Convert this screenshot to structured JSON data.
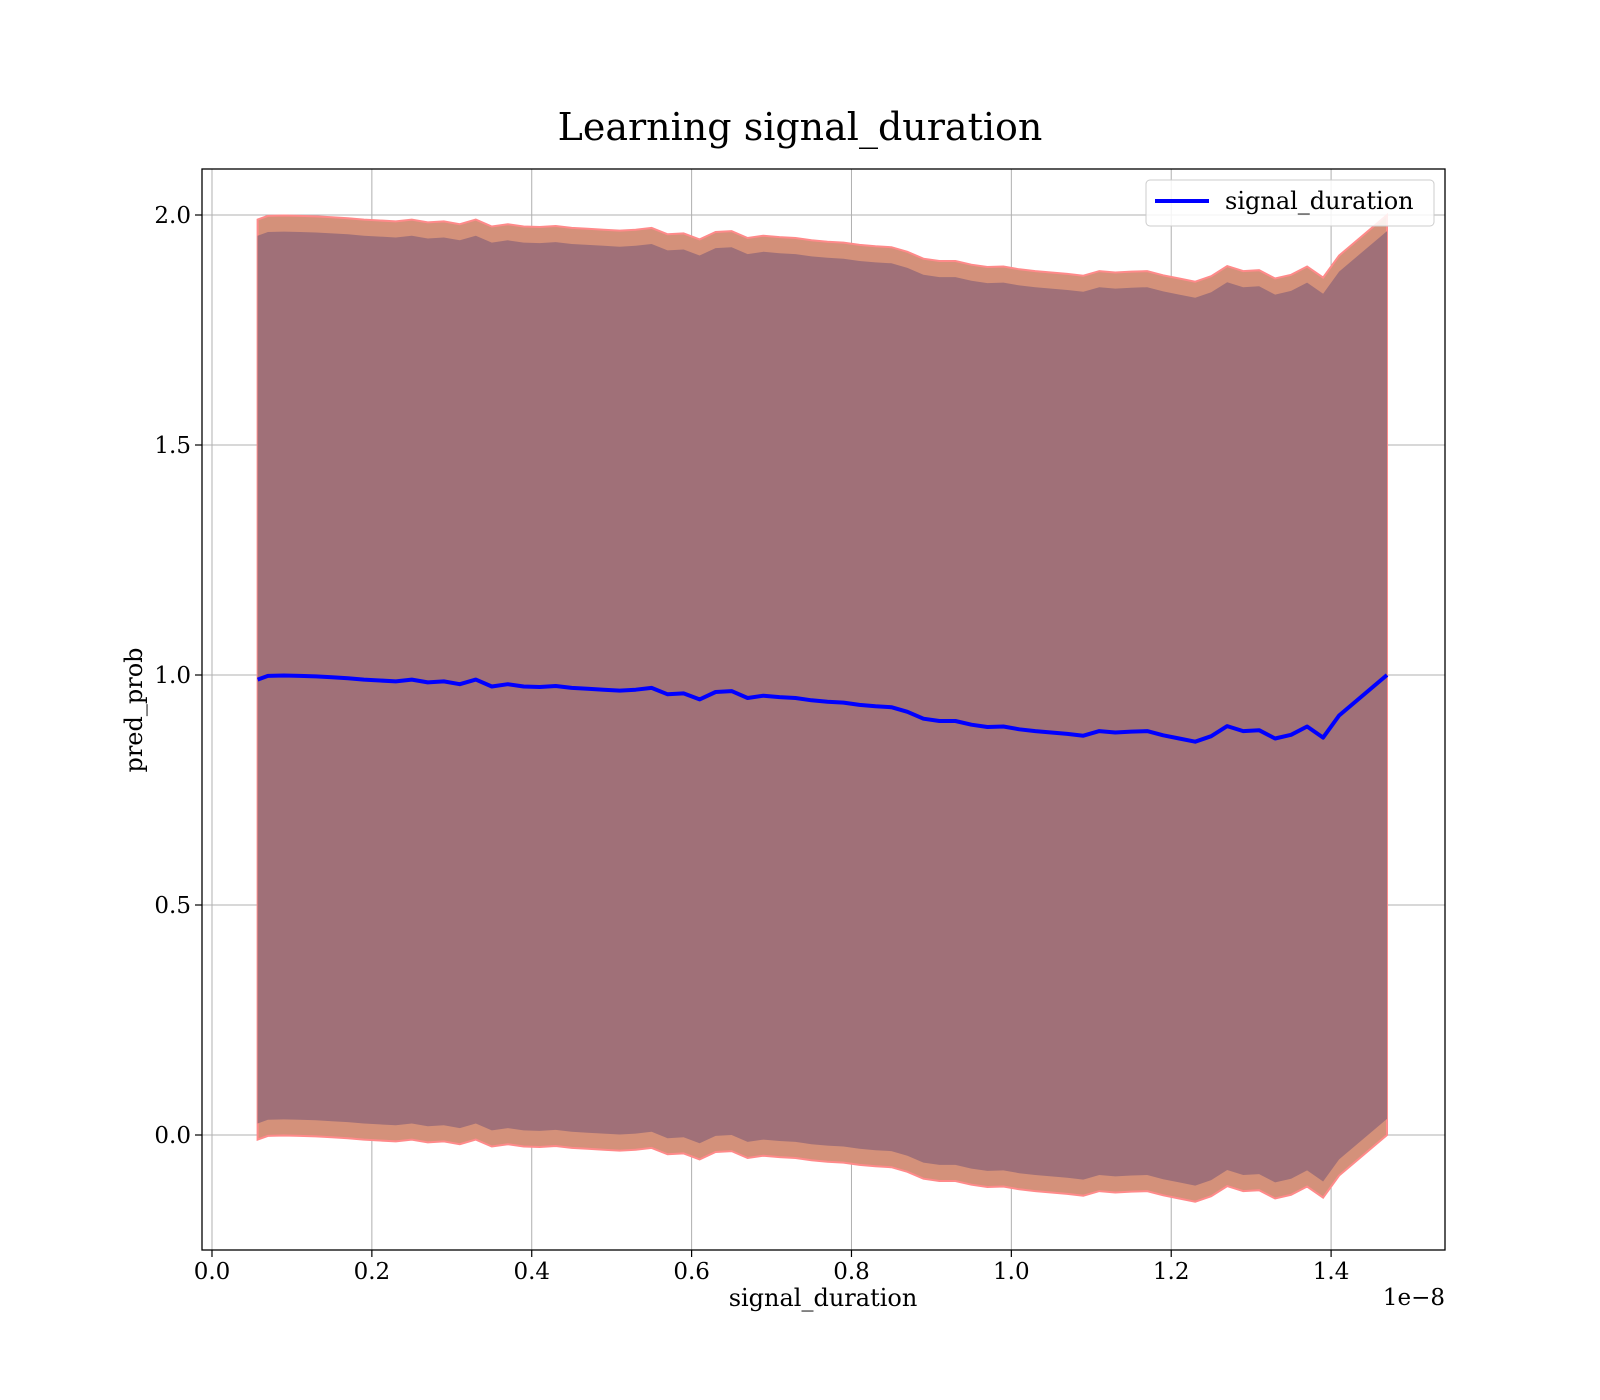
{
  "chart_data": {
    "type": "line",
    "title": "Learning signal_duration",
    "xlabel": "signal_duration",
    "ylabel": "pred_prob",
    "x_offset_text": "1e−8",
    "xlim": [
      -0.0125,
      1.5425
    ],
    "ylim": [
      -0.25,
      2.1
    ],
    "grid": true,
    "legend": {
      "placement": "top-right",
      "entries": [
        "signal_duration"
      ]
    },
    "xticks": [
      {
        "value": 0.0,
        "label": "0.0"
      },
      {
        "value": 0.2,
        "label": "0.2"
      },
      {
        "value": 0.4,
        "label": "0.4"
      },
      {
        "value": 0.6,
        "label": "0.6"
      },
      {
        "value": 0.8,
        "label": "0.8"
      },
      {
        "value": 1.0,
        "label": "1.0"
      },
      {
        "value": 1.2,
        "label": "1.2"
      },
      {
        "value": 1.4,
        "label": "1.4"
      }
    ],
    "yticks": [
      {
        "value": 0.0,
        "label": "0.0"
      },
      {
        "value": 0.5,
        "label": "0.5"
      },
      {
        "value": 1.0,
        "label": "1.0"
      },
      {
        "value": 1.5,
        "label": "1.5"
      },
      {
        "value": 2.0,
        "label": "2.0"
      }
    ],
    "colors": {
      "line": "#0000ff",
      "outer_band": "#d4917a",
      "outer_band_edge": "#ff8a8a",
      "inner_band": "#a07078"
    },
    "series": [
      {
        "name": "signal_duration",
        "x": [
          0.057,
          0.07,
          0.09,
          0.11,
          0.13,
          0.15,
          0.17,
          0.19,
          0.21,
          0.23,
          0.25,
          0.27,
          0.29,
          0.31,
          0.33,
          0.35,
          0.37,
          0.39,
          0.41,
          0.43,
          0.45,
          0.47,
          0.49,
          0.51,
          0.53,
          0.55,
          0.57,
          0.59,
          0.61,
          0.63,
          0.65,
          0.67,
          0.69,
          0.71,
          0.73,
          0.75,
          0.77,
          0.79,
          0.81,
          0.83,
          0.85,
          0.87,
          0.89,
          0.91,
          0.93,
          0.95,
          0.97,
          0.99,
          1.01,
          1.03,
          1.05,
          1.07,
          1.09,
          1.11,
          1.13,
          1.15,
          1.17,
          1.19,
          1.21,
          1.23,
          1.25,
          1.27,
          1.29,
          1.31,
          1.33,
          1.35,
          1.37,
          1.39,
          1.41,
          1.47
        ],
        "y": [
          0.99,
          0.998,
          0.999,
          0.998,
          0.997,
          0.995,
          0.993,
          0.99,
          0.988,
          0.986,
          0.99,
          0.984,
          0.986,
          0.98,
          0.99,
          0.975,
          0.98,
          0.975,
          0.974,
          0.976,
          0.972,
          0.97,
          0.968,
          0.966,
          0.968,
          0.972,
          0.958,
          0.96,
          0.947,
          0.963,
          0.965,
          0.95,
          0.955,
          0.952,
          0.95,
          0.945,
          0.942,
          0.94,
          0.935,
          0.932,
          0.93,
          0.92,
          0.905,
          0.9,
          0.9,
          0.892,
          0.887,
          0.888,
          0.882,
          0.878,
          0.875,
          0.872,
          0.868,
          0.878,
          0.875,
          0.877,
          0.878,
          0.869,
          0.862,
          0.855,
          0.867,
          0.889,
          0.878,
          0.88,
          0.862,
          0.87,
          0.888,
          0.864,
          0.912,
          1.0
        ]
      }
    ]
  }
}
